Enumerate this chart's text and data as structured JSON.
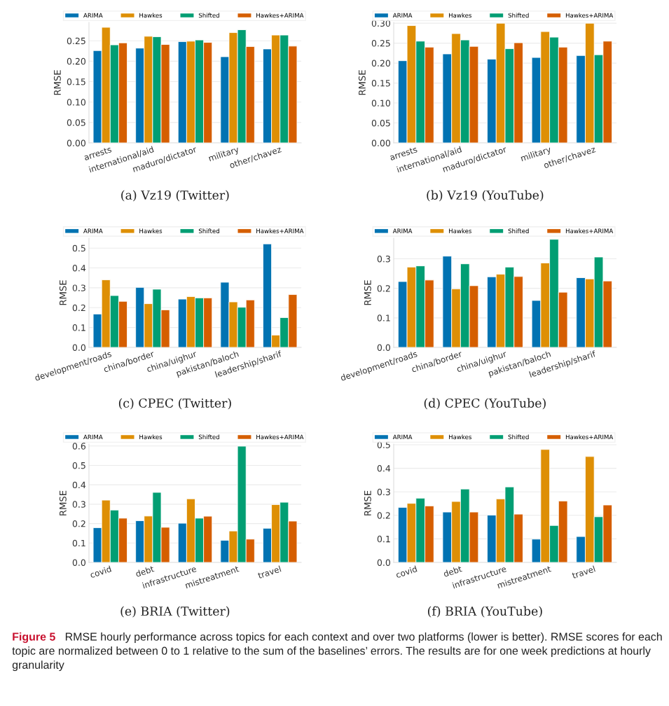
{
  "chart_data": [
    {
      "type": "bar",
      "title": "(a) Vz19 (Twitter)",
      "ylabel": "RMSE",
      "legend": "top",
      "grid": "y",
      "categories": [
        "arrests",
        "international/aid",
        "maduro/dictator",
        "military",
        "other/chavez"
      ],
      "ylim": [
        0,
        0.295
      ],
      "yticks": [
        {
          "value": 0,
          "label": "0.00"
        },
        {
          "value": 0.05,
          "label": "0.05"
        },
        {
          "value": 0.1,
          "label": "0.10"
        },
        {
          "value": 0.15,
          "label": "0.15"
        },
        {
          "value": 0.2,
          "label": "0.20"
        },
        {
          "value": 0.25,
          "label": "0.25"
        }
      ],
      "series": [
        {
          "name": "ARIMA",
          "color": "#0173b2",
          "values": [
            0.226,
            0.232,
            0.248,
            0.211,
            0.23
          ]
        },
        {
          "name": "Hawkes",
          "color": "#de8f05",
          "values": [
            0.283,
            0.261,
            0.249,
            0.27,
            0.264
          ]
        },
        {
          "name": "Shifted",
          "color": "#029e73",
          "values": [
            0.24,
            0.26,
            0.252,
            0.277,
            0.264
          ]
        },
        {
          "name": "Hawkes+ARIMA",
          "color": "#d55e00",
          "values": [
            0.245,
            0.241,
            0.246,
            0.236,
            0.237
          ]
        }
      ]
    },
    {
      "type": "bar",
      "title": "(b) Vz19 (YouTube)",
      "ylabel": "RMSE",
      "legend": "top",
      "grid": "y",
      "categories": [
        "arrests",
        "international/aid",
        "maduro/dictator",
        "military",
        "other/chavez"
      ],
      "ylim": [
        0,
        0.302
      ],
      "yticks": [
        {
          "value": 0,
          "label": "0.00"
        },
        {
          "value": 0.05,
          "label": "0.05"
        },
        {
          "value": 0.1,
          "label": "0.10"
        },
        {
          "value": 0.15,
          "label": "0.15"
        },
        {
          "value": 0.2,
          "label": "0.20"
        },
        {
          "value": 0.25,
          "label": "0.25"
        },
        {
          "value": 0.3,
          "label": "0.30"
        }
      ],
      "series": [
        {
          "name": "ARIMA",
          "color": "#0173b2",
          "values": [
            0.206,
            0.223,
            0.21,
            0.214,
            0.219
          ]
        },
        {
          "name": "Hawkes",
          "color": "#de8f05",
          "values": [
            0.294,
            0.274,
            0.3,
            0.279,
            0.3
          ]
        },
        {
          "name": "Shifted",
          "color": "#029e73",
          "values": [
            0.255,
            0.258,
            0.236,
            0.265,
            0.221
          ]
        },
        {
          "name": "Hawkes+ARIMA",
          "color": "#d55e00",
          "values": [
            0.24,
            0.242,
            0.251,
            0.24,
            0.255
          ]
        }
      ]
    },
    {
      "type": "bar",
      "title": "(c) CPEC (Twitter)",
      "ylabel": "RMSE",
      "legend": "top",
      "grid": "y",
      "categories": [
        "development/roads",
        "china/border",
        "china/uighur",
        "pakistan/baloch",
        "leadership/sharif"
      ],
      "ylim": [
        0,
        0.55
      ],
      "yticks": [
        {
          "value": 0,
          "label": "0.0"
        },
        {
          "value": 0.1,
          "label": "0.1"
        },
        {
          "value": 0.2,
          "label": "0.2"
        },
        {
          "value": 0.3,
          "label": "0.3"
        },
        {
          "value": 0.4,
          "label": "0.4"
        },
        {
          "value": 0.5,
          "label": "0.5"
        }
      ],
      "series": [
        {
          "name": "ARIMA",
          "color": "#0173b2",
          "values": [
            0.168,
            0.302,
            0.243,
            0.328,
            0.521
          ]
        },
        {
          "name": "Hawkes",
          "color": "#de8f05",
          "values": [
            0.34,
            0.22,
            0.256,
            0.229,
            0.062
          ]
        },
        {
          "name": "Shifted",
          "color": "#029e73",
          "values": [
            0.261,
            0.293,
            0.249,
            0.202,
            0.15
          ]
        },
        {
          "name": "Hawkes+ARIMA",
          "color": "#d55e00",
          "values": [
            0.232,
            0.189,
            0.249,
            0.239,
            0.266
          ]
        }
      ]
    },
    {
      "type": "bar",
      "title": "(d) CPEC (YouTube)",
      "ylabel": "RMSE",
      "legend": "top",
      "grid": "y",
      "categories": [
        "development/roads",
        "china/border",
        "china/uighur",
        "pakistan/baloch",
        "leadership/sharif"
      ],
      "ylim": [
        0,
        0.37
      ],
      "yticks": [
        {
          "value": 0,
          "label": "0.0"
        },
        {
          "value": 0.1,
          "label": "0.1"
        },
        {
          "value": 0.2,
          "label": "0.2"
        },
        {
          "value": 0.3,
          "label": "0.3"
        }
      ],
      "series": [
        {
          "name": "ARIMA",
          "color": "#0173b2",
          "values": [
            0.223,
            0.309,
            0.239,
            0.159,
            0.236
          ]
        },
        {
          "name": "Hawkes",
          "color": "#de8f05",
          "values": [
            0.272,
            0.198,
            0.248,
            0.286,
            0.232
          ]
        },
        {
          "name": "Shifted",
          "color": "#029e73",
          "values": [
            0.276,
            0.283,
            0.272,
            0.366,
            0.306
          ]
        },
        {
          "name": "Hawkes+ARIMA",
          "color": "#d55e00",
          "values": [
            0.228,
            0.209,
            0.24,
            0.187,
            0.225
          ]
        }
      ]
    },
    {
      "type": "bar",
      "title": "(e) BRIA (Twitter)",
      "ylabel": "RMSE",
      "legend": "top",
      "grid": "y",
      "categories": [
        "covid",
        "debt",
        "infrastructure",
        "mistreatment",
        "travel"
      ],
      "ylim": [
        0,
        0.61
      ],
      "yticks": [
        {
          "value": 0,
          "label": "0.0"
        },
        {
          "value": 0.1,
          "label": "0.1"
        },
        {
          "value": 0.2,
          "label": "0.2"
        },
        {
          "value": 0.3,
          "label": "0.3"
        },
        {
          "value": 0.4,
          "label": "0.4"
        },
        {
          "value": 0.5,
          "label": "0.5"
        },
        {
          "value": 0.6,
          "label": "0.6"
        }
      ],
      "series": [
        {
          "name": "ARIMA",
          "color": "#0173b2",
          "values": [
            0.179,
            0.215,
            0.202,
            0.114,
            0.176
          ]
        },
        {
          "name": "Hawkes",
          "color": "#de8f05",
          "values": [
            0.321,
            0.239,
            0.328,
            0.162,
            0.298
          ]
        },
        {
          "name": "Shifted",
          "color": "#029e73",
          "values": [
            0.27,
            0.361,
            0.228,
            0.599,
            0.31
          ]
        },
        {
          "name": "Hawkes+ARIMA",
          "color": "#d55e00",
          "values": [
            0.228,
            0.181,
            0.238,
            0.12,
            0.213
          ]
        }
      ]
    },
    {
      "type": "bar",
      "title": "(f) BRIA (YouTube)",
      "ylabel": "RMSE",
      "legend": "top",
      "grid": "y",
      "categories": [
        "covid",
        "debt",
        "infrastructure",
        "mistreatment",
        "travel"
      ],
      "ylim": [
        0,
        0.503
      ],
      "yticks": [
        {
          "value": 0,
          "label": "0.0"
        },
        {
          "value": 0.1,
          "label": "0.1"
        },
        {
          "value": 0.2,
          "label": "0.2"
        },
        {
          "value": 0.3,
          "label": "0.3"
        },
        {
          "value": 0.4,
          "label": "0.4"
        },
        {
          "value": 0.5,
          "label": "0.5"
        }
      ],
      "series": [
        {
          "name": "ARIMA",
          "color": "#0173b2",
          "values": [
            0.234,
            0.214,
            0.201,
            0.099,
            0.11
          ]
        },
        {
          "name": "Hawkes",
          "color": "#de8f05",
          "values": [
            0.251,
            0.259,
            0.27,
            0.48,
            0.45
          ]
        },
        {
          "name": "Shifted",
          "color": "#029e73",
          "values": [
            0.273,
            0.312,
            0.321,
            0.157,
            0.194
          ]
        },
        {
          "name": "Hawkes+ARIMA",
          "color": "#d55e00",
          "values": [
            0.24,
            0.214,
            0.205,
            0.261,
            0.244
          ]
        }
      ],
      "annotations": [
        "Figure 5",
        "RMSE hourly performance across topics for each context and over two platforms (lower is better). RMSE scores for each topic are normalized between 0 to 1 relative to the sum of the baselines’ errors. The results are for one week predictions at hourly granularity"
      ]
    }
  ]
}
